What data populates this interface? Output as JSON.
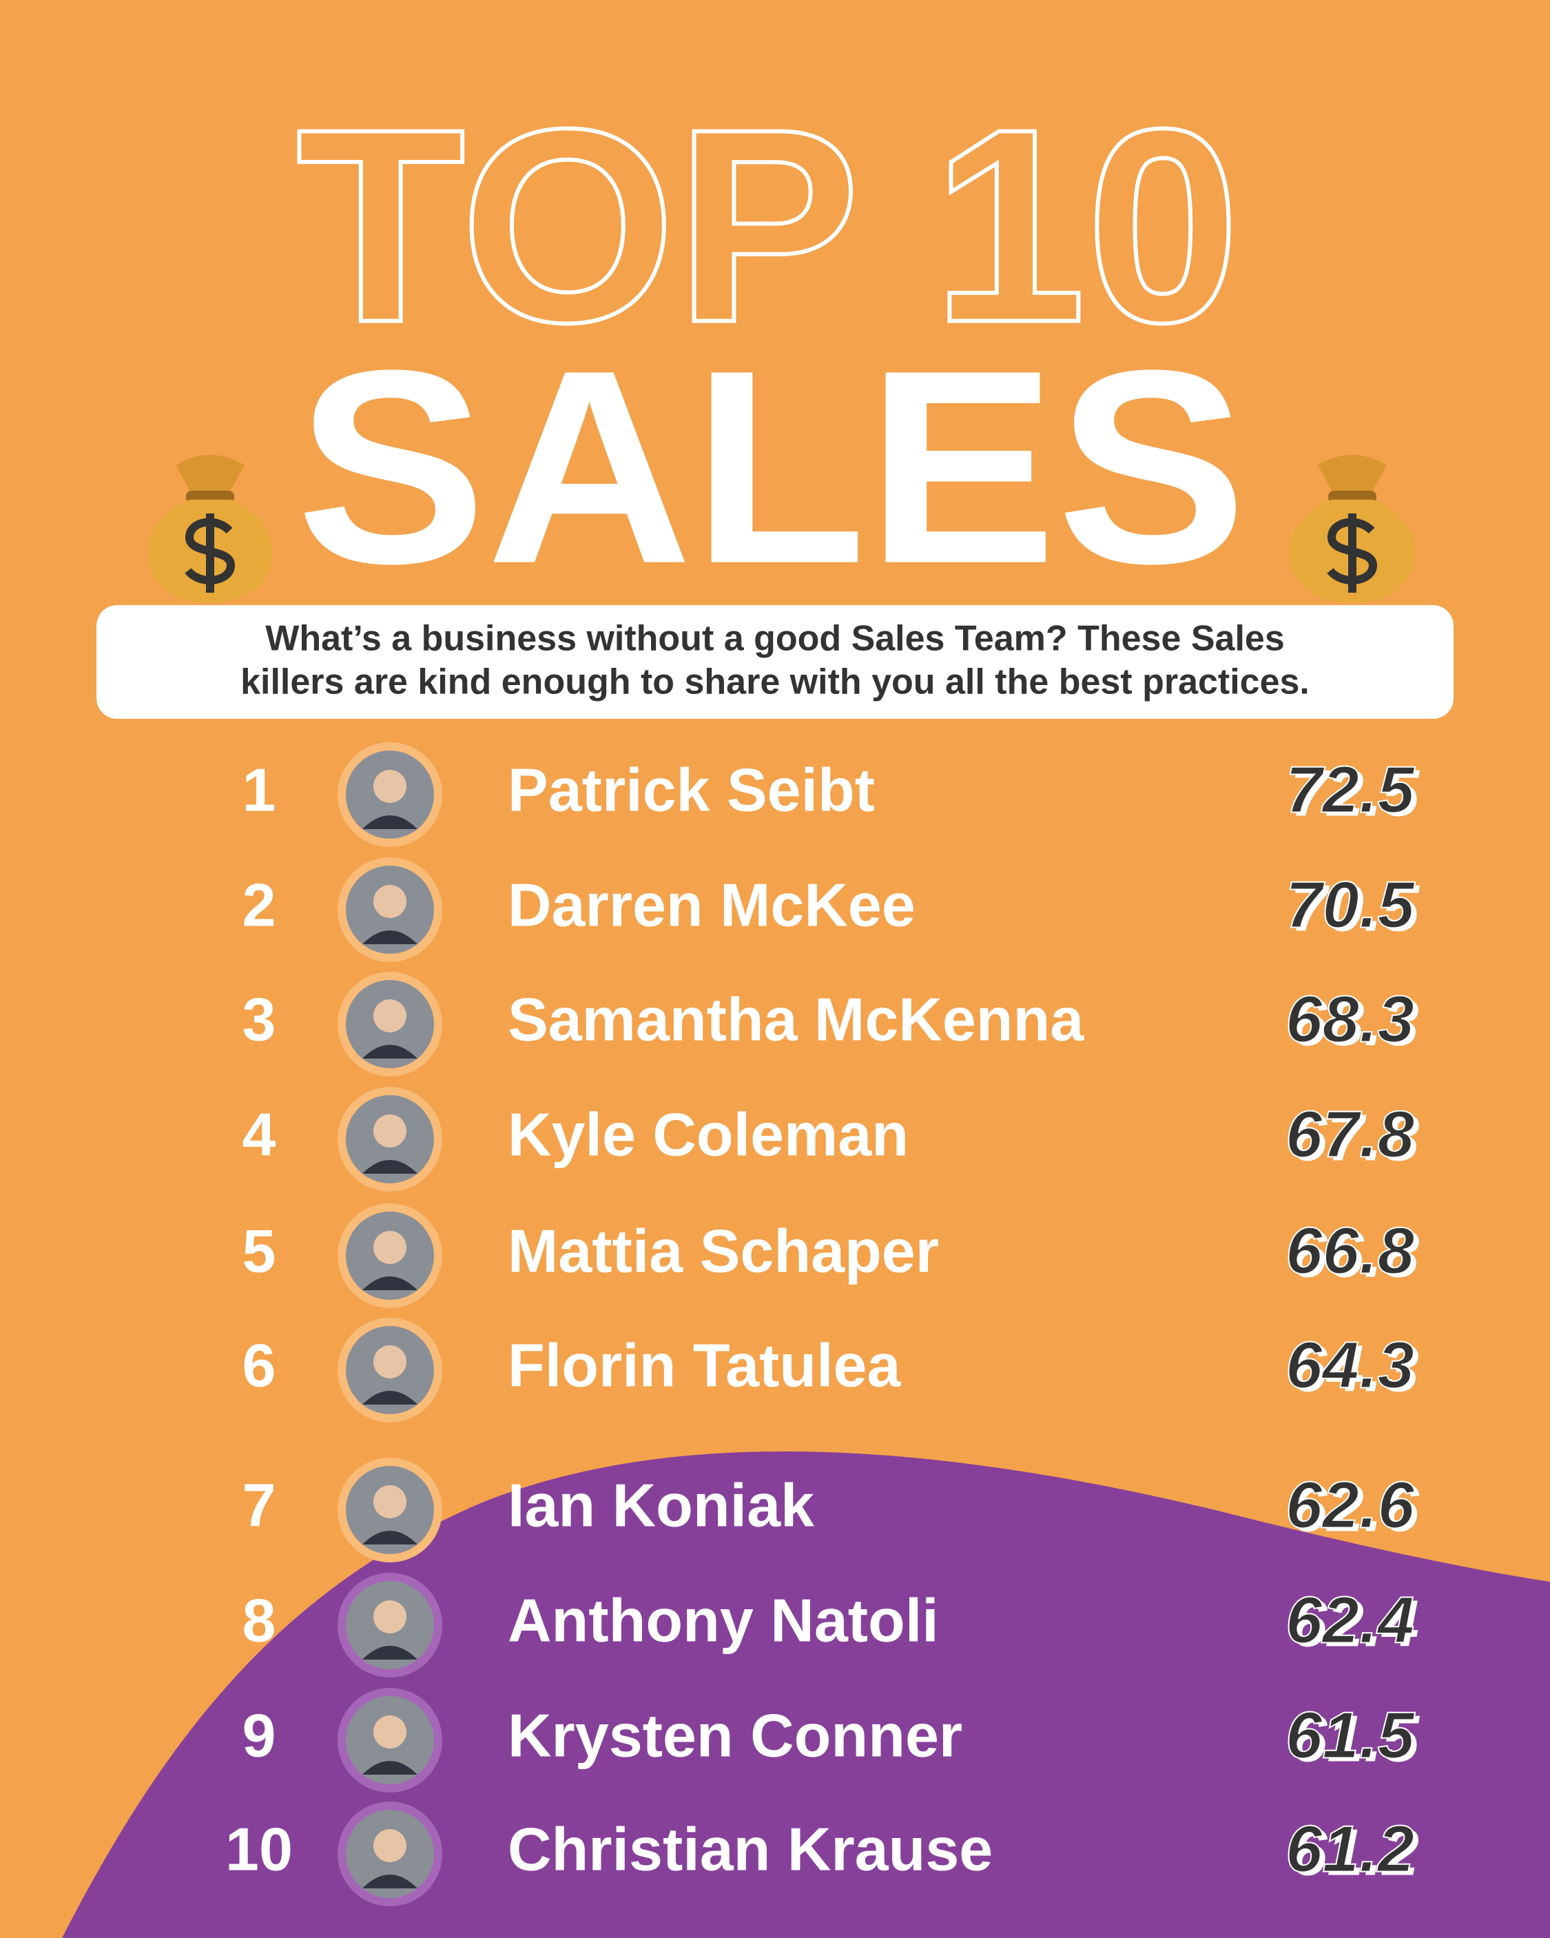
{
  "header": {
    "title_line1": "TOP 10",
    "title_line2": "SALES",
    "subtitle_lines": [
      "What’s a business without a good Sales Team? These Sales",
      "killers are kind enough to share with you all the best practices."
    ]
  },
  "rows": [
    {
      "rank": 1,
      "name": "Patrick Seibt",
      "score": 72.5
    },
    {
      "rank": 2,
      "name": "Darren McKee",
      "score": 70.5
    },
    {
      "rank": 3,
      "name": "Samantha McKenna",
      "score": 68.3
    },
    {
      "rank": 4,
      "name": "Kyle Coleman",
      "score": 67.8
    },
    {
      "rank": 5,
      "name": "Mattia Schaper",
      "score": 66.8
    },
    {
      "rank": 6,
      "name": "Florin Tatulea",
      "score": 64.3
    },
    {
      "rank": 7,
      "name": "Ian Koniak",
      "score": 62.6
    },
    {
      "rank": 8,
      "name": "Anthony Natoli",
      "score": 62.4
    },
    {
      "rank": 9,
      "name": "Krysten Conner",
      "score": 61.5
    },
    {
      "rank": 10,
      "name": "Christian Krause",
      "score": 61.2
    }
  ]
}
